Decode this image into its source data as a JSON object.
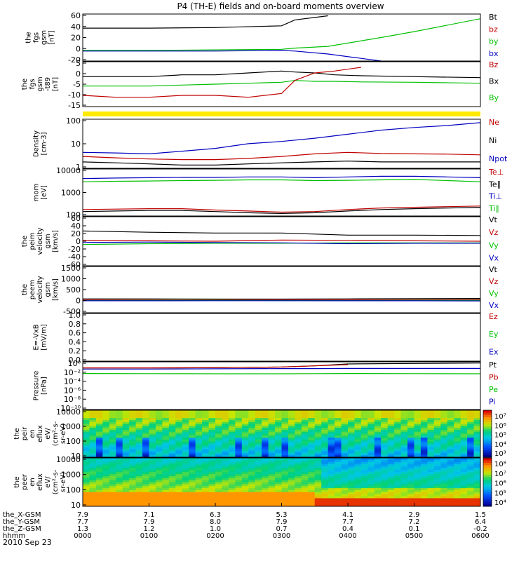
{
  "title": "P4 (TH-E) fields and on-board moments overview",
  "date_label": "2010 Sep 23",
  "orbit_rows": [
    {
      "label": "the_X-GSM",
      "values": [
        "7.9",
        "7.1",
        "6.3",
        "5.3",
        "4.1",
        "2.9",
        "1.5"
      ]
    },
    {
      "label": "the_Y-GSM",
      "values": [
        "7.7",
        "7.9",
        "8.0",
        "7.9",
        "7.7",
        "7.2",
        "6.4"
      ]
    },
    {
      "label": "the_Z-GSM",
      "values": [
        "1.3",
        "1.2",
        "1.0",
        "0.7",
        "0.4",
        "0.1",
        "-0.2"
      ]
    },
    {
      "label": "hhmm",
      "values": [
        "0000",
        "0100",
        "0200",
        "0300",
        "0400",
        "0500",
        "0600"
      ]
    }
  ],
  "chart_data": [
    {
      "type": "line",
      "ylabel": [
        "the",
        "fgs",
        "gsm",
        "[nT]"
      ],
      "yticks": [
        "60",
        "40",
        "20",
        "0",
        "-20"
      ],
      "ylim": [
        -20,
        60
      ],
      "legend": [
        {
          "label": "Bt",
          "color": "#000000"
        },
        {
          "label": "bz",
          "color": "#c00000"
        },
        {
          "label": "by",
          "color": "#00c000"
        },
        {
          "label": "bx",
          "color": "#0000c0"
        }
      ],
      "x": [
        0,
        1,
        2,
        3,
        3.2,
        3.7,
        4.5,
        5,
        6
      ],
      "series": [
        {
          "name": "Bt",
          "color": "#000000",
          "values": [
            36,
            36,
            37,
            40,
            50,
            57,
            null,
            null,
            null
          ]
        },
        {
          "name": "by",
          "color": "#00c000",
          "values": [
            -2,
            -2,
            -1,
            0,
            2,
            5,
            20,
            30,
            52
          ]
        },
        {
          "name": "bx",
          "color": "#0000c0",
          "values": [
            -3,
            -3,
            -3,
            -2,
            -3,
            -8,
            -20,
            null,
            null
          ]
        }
      ]
    },
    {
      "type": "line",
      "ylabel": [
        "the",
        "fgs",
        "gsm",
        "-t89",
        "[nT]"
      ],
      "yticks": [
        "5",
        "0",
        "-5",
        "-10",
        "-15"
      ],
      "ylim": [
        -17,
        7
      ],
      "legend": [
        {
          "label": "Bz",
          "color": "#c00000"
        },
        {
          "label": "Bx",
          "color": "#000000"
        },
        {
          "label": "By",
          "color": "#00c000"
        }
      ],
      "x": [
        0,
        0.5,
        1,
        1.5,
        2,
        2.5,
        3,
        3.2,
        3.5,
        3.8,
        4.2,
        5,
        6
      ],
      "series": [
        {
          "name": "Bx",
          "color": "#000000",
          "values": [
            -1,
            -1,
            -1,
            0,
            0,
            1,
            2,
            1.5,
            1,
            0,
            -0.5,
            -1,
            -1.5
          ]
        },
        {
          "name": "By",
          "color": "#00c000",
          "values": [
            -6,
            -6,
            -6,
            -5.5,
            -5,
            -4.5,
            -4,
            -3,
            -3.5,
            -3.5,
            -3.8,
            -4,
            -4.5
          ]
        },
        {
          "name": "Bz",
          "color": "#c00000",
          "values": [
            -11,
            -12,
            -12,
            -11,
            -11,
            -12,
            -10,
            -3,
            1,
            2,
            4,
            null,
            null
          ]
        }
      ]
    },
    {
      "type": "line",
      "ylabel": [
        "Density",
        "[cm-3]"
      ],
      "ytype": "log",
      "yticks": [
        "100",
        "10",
        "1"
      ],
      "ylim": [
        0.4,
        200
      ],
      "legend": [
        {
          "label": "Ne",
          "color": "#c00000"
        },
        {
          "label": "Ni",
          "color": "#000000"
        },
        {
          "label": "Npot",
          "color": "#0000c0"
        }
      ],
      "x": [
        0,
        0.5,
        1,
        1.5,
        2,
        2.5,
        3,
        3.5,
        4,
        4.5,
        5,
        5.5,
        6
      ],
      "series": [
        {
          "name": "Npot",
          "color": "#0000c0",
          "values": [
            3,
            2.8,
            2.5,
            3.5,
            5,
            9,
            12,
            18,
            30,
            50,
            70,
            90,
            130
          ]
        },
        {
          "name": "Ne",
          "color": "#c00000",
          "values": [
            1.8,
            1.5,
            1.3,
            1.2,
            1.2,
            1.4,
            1.8,
            2.5,
            3,
            2.6,
            2.5,
            2.4,
            2.2
          ]
        },
        {
          "name": "Ni",
          "color": "#000000",
          "values": [
            0.9,
            0.8,
            0.7,
            0.6,
            0.6,
            0.7,
            0.8,
            0.9,
            1,
            0.9,
            0.9,
            0.9,
            0.9
          ]
        }
      ]
    },
    {
      "type": "line",
      "ylabel": [
        "mom",
        "[eV]"
      ],
      "ytype": "log",
      "yticks": [
        "10000",
        "1000",
        "100"
      ],
      "ylim": [
        40,
        15000
      ],
      "legend": [
        {
          "label": "Te⊥",
          "color": "#c00000"
        },
        {
          "label": "Te∥",
          "color": "#000000"
        },
        {
          "label": "Ti⊥",
          "color": "#0000c0"
        },
        {
          "label": "Ti∥",
          "color": "#00c000"
        }
      ],
      "x": [
        0,
        0.5,
        1,
        1.5,
        2,
        2.5,
        3,
        3.5,
        4,
        4.5,
        5,
        5.5,
        6
      ],
      "series": [
        {
          "name": "Ti⊥",
          "color": "#0000c0",
          "values": [
            4500,
            4800,
            5000,
            5200,
            5200,
            5500,
            5500,
            5000,
            5500,
            6000,
            6000,
            5500,
            5000
          ]
        },
        {
          "name": "Ti∥",
          "color": "#00c000",
          "values": [
            3000,
            3200,
            3300,
            3500,
            3600,
            3800,
            3800,
            3500,
            3600,
            3800,
            4000,
            3500,
            3000
          ]
        },
        {
          "name": "Te⊥",
          "color": "#c00000",
          "values": [
            90,
            95,
            100,
            100,
            85,
            75,
            65,
            70,
            90,
            110,
            120,
            130,
            140
          ]
        },
        {
          "name": "Te∥",
          "color": "#000000",
          "values": [
            70,
            75,
            80,
            80,
            70,
            60,
            55,
            60,
            75,
            90,
            100,
            110,
            120
          ]
        }
      ]
    },
    {
      "type": "line",
      "ylabel": [
        "the",
        "peim",
        "velocity",
        "gsm",
        "[km/s]"
      ],
      "yticks": [
        "60",
        "40",
        "20",
        "0",
        "-20",
        "-40",
        "-60"
      ],
      "ylim": [
        -60,
        60
      ],
      "legend": [
        {
          "label": "Vt",
          "color": "#000000"
        },
        {
          "label": "Vz",
          "color": "#c00000"
        },
        {
          "label": "Vy",
          "color": "#00c000"
        },
        {
          "label": "Vx",
          "color": "#0000c0"
        }
      ],
      "x": [
        0,
        1,
        2,
        3,
        4,
        5,
        6
      ],
      "series": [
        {
          "name": "Vt",
          "color": "#000000",
          "values": [
            25,
            22,
            20,
            20,
            15,
            15,
            14
          ]
        },
        {
          "name": "Vz",
          "color": "#c00000",
          "values": [
            2,
            1,
            0,
            3,
            2,
            1,
            0
          ]
        },
        {
          "name": "Vy",
          "color": "#00c000",
          "values": [
            -8,
            -6,
            -5,
            -5,
            -4,
            -4,
            -4
          ]
        },
        {
          "name": "Vx",
          "color": "#0000c0",
          "values": [
            -3,
            -2,
            -3,
            -4,
            -6,
            -5,
            -5
          ]
        }
      ]
    },
    {
      "type": "line",
      "ylabel": [
        "the",
        "peem",
        "velocity",
        "gsm",
        "[km/s]"
      ],
      "yticks": [
        "1500",
        "1000",
        "500",
        "0",
        "-500"
      ],
      "ylim": [
        -600,
        1600
      ],
      "legend": [
        {
          "label": "Vt",
          "color": "#000000"
        },
        {
          "label": "Vz",
          "color": "#c00000"
        },
        {
          "label": "Vy",
          "color": "#00c000"
        },
        {
          "label": "Vx",
          "color": "#0000c0"
        }
      ],
      "x": [
        0,
        1,
        2,
        3,
        4,
        5,
        6
      ],
      "series": [
        {
          "name": "Vt",
          "color": "#000000",
          "values": [
            60,
            60,
            50,
            50,
            60,
            70,
            80
          ]
        },
        {
          "name": "Vz",
          "color": "#c00000",
          "values": [
            10,
            10,
            5,
            5,
            10,
            15,
            20
          ]
        },
        {
          "name": "Vy",
          "color": "#00c000",
          "values": [
            -20,
            -15,
            -15,
            -20,
            -20,
            -15,
            -15
          ]
        },
        {
          "name": "Vx",
          "color": "#0000c0",
          "values": [
            -30,
            -30,
            -25,
            -25,
            -30,
            -30,
            -35
          ]
        }
      ]
    },
    {
      "type": "line",
      "ylabel": [
        "E=-VxB",
        "[mV/m]"
      ],
      "yticks": [
        "1.0",
        "0.8",
        "0.6",
        "0.4",
        "0.2",
        "0.0"
      ],
      "ylim": [
        0,
        1
      ],
      "legend": [
        {
          "label": "Ez",
          "color": "#c00000"
        },
        {
          "label": "Ey",
          "color": "#00c000"
        },
        {
          "label": "Ex",
          "color": "#0000c0"
        }
      ],
      "series": []
    },
    {
      "type": "line",
      "ylabel": [
        "Pressure",
        "[nPa]"
      ],
      "ytype": "log",
      "yticks": [
        "10⁰",
        "10⁻²",
        "10⁻⁴",
        "10⁻⁶",
        "10⁻⁸",
        "10⁻¹⁰"
      ],
      "ylim": [
        1e-11,
        10
      ],
      "legend": [
        {
          "label": "Pt",
          "color": "#000000"
        },
        {
          "label": "Pb",
          "color": "#c00000"
        },
        {
          "label": "Pe",
          "color": "#00c000"
        },
        {
          "label": "Pi",
          "color": "#0000c0"
        }
      ],
      "x": [
        0,
        1,
        2,
        3,
        3.5,
        4,
        5,
        6
      ],
      "series": [
        {
          "name": "Pt",
          "color": "#000000",
          "values": [
            0.3,
            0.3,
            0.35,
            0.5,
            1,
            3,
            4,
            5
          ]
        },
        {
          "name": "Pb",
          "color": "#c00000",
          "values": [
            0.3,
            0.3,
            0.35,
            0.5,
            1,
            2,
            null,
            null
          ]
        },
        {
          "name": "Pi",
          "color": "#0000c0",
          "values": [
            0.15,
            0.15,
            0.18,
            0.2,
            0.2,
            0.22,
            0.22,
            0.22
          ]
        },
        {
          "name": "Pe",
          "color": "#00c000",
          "values": [
            0.012,
            0.011,
            0.01,
            0.01,
            0.011,
            0.012,
            0.011,
            0.01
          ]
        }
      ]
    },
    {
      "type": "heatmap",
      "ylabel": [
        "the",
        "peir",
        "en",
        "eflux",
        "eV/",
        "(cm²-s-",
        "sr-eV)"
      ],
      "ytype": "log",
      "yticks": [
        "10000",
        "1000",
        "100",
        "10"
      ],
      "ylim": [
        7,
        30000
      ],
      "colorbar_ticks": [
        "10⁷",
        "10⁶",
        "10⁵",
        "10⁴",
        "10³"
      ]
    },
    {
      "type": "heatmap",
      "ylabel": [
        "the",
        "peer",
        "en",
        "eflux",
        "eV/",
        "(cm²-s-",
        "sr-eV)"
      ],
      "ytype": "log",
      "yticks": [
        "10000",
        "1000",
        "100",
        "10"
      ],
      "ylim": [
        7,
        30000
      ],
      "colorbar_ticks": [
        "10⁸",
        "10⁷",
        "10⁶",
        "10⁵",
        "10⁴"
      ]
    }
  ]
}
